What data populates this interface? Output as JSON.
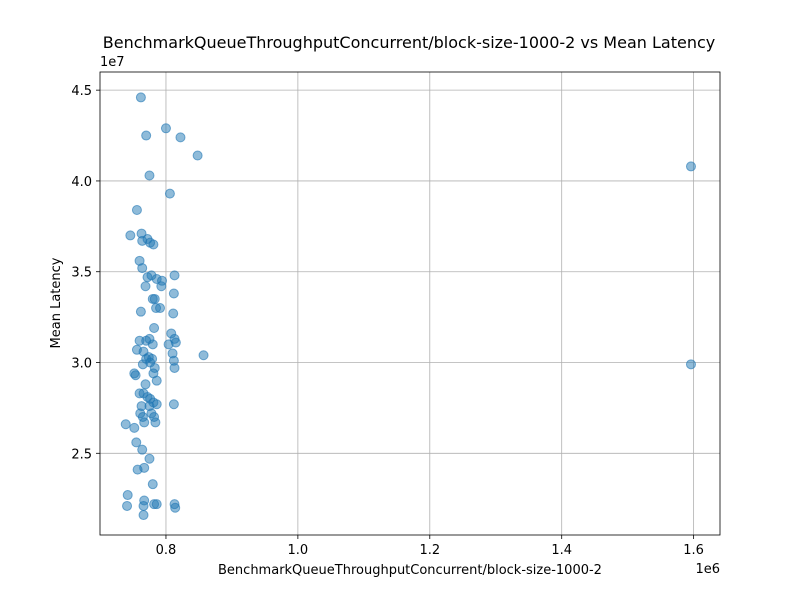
{
  "chart_data": {
    "type": "scatter",
    "title": "BenchmarkQueueThroughputConcurrent/block-size-1000-2 vs Mean Latency",
    "xlabel": "BenchmarkQueueThroughputConcurrent/block-size-1000-2",
    "ylabel": "Mean Latency",
    "x_offset_label": "1e6",
    "y_offset_label": "1e7",
    "xlim": [
      0.7,
      1.64
    ],
    "ylim": [
      2.05,
      4.6
    ],
    "xticks": [
      0.8,
      1.0,
      1.2,
      1.4,
      1.6
    ],
    "xtick_labels": [
      "0.8",
      "1.0",
      "1.2",
      "1.4",
      "1.6"
    ],
    "yticks": [
      2.5,
      3.0,
      3.5,
      4.0,
      4.5
    ],
    "ytick_labels": [
      "2.5",
      "3.0",
      "3.5",
      "4.0",
      "4.5"
    ],
    "grid": true,
    "color": "#1f77b4",
    "points": [
      [
        0.762,
        4.46
      ],
      [
        0.77,
        4.25
      ],
      [
        0.8,
        4.29
      ],
      [
        0.822,
        4.24
      ],
      [
        0.848,
        4.14
      ],
      [
        0.775,
        4.03
      ],
      [
        0.806,
        3.93
      ],
      [
        1.596,
        4.08
      ],
      [
        0.756,
        3.84
      ],
      [
        0.746,
        3.7
      ],
      [
        0.763,
        3.71
      ],
      [
        0.764,
        3.67
      ],
      [
        0.772,
        3.68
      ],
      [
        0.776,
        3.66
      ],
      [
        0.781,
        3.65
      ],
      [
        0.76,
        3.56
      ],
      [
        0.764,
        3.52
      ],
      [
        0.772,
        3.47
      ],
      [
        0.778,
        3.48
      ],
      [
        0.786,
        3.46
      ],
      [
        0.794,
        3.45
      ],
      [
        0.813,
        3.48
      ],
      [
        0.769,
        3.42
      ],
      [
        0.793,
        3.42
      ],
      [
        0.78,
        3.35
      ],
      [
        0.783,
        3.35
      ],
      [
        0.812,
        3.38
      ],
      [
        0.762,
        3.28
      ],
      [
        0.785,
        3.3
      ],
      [
        0.791,
        3.3
      ],
      [
        0.811,
        3.27
      ],
      [
        0.782,
        3.19
      ],
      [
        0.808,
        3.16
      ],
      [
        0.813,
        3.13
      ],
      [
        0.815,
        3.11
      ],
      [
        0.76,
        3.12
      ],
      [
        0.77,
        3.12
      ],
      [
        0.775,
        3.13
      ],
      [
        0.78,
        3.1
      ],
      [
        0.804,
        3.1
      ],
      [
        0.81,
        3.05
      ],
      [
        0.756,
        3.07
      ],
      [
        0.766,
        3.06
      ],
      [
        0.77,
        3.02
      ],
      [
        0.774,
        3.03
      ],
      [
        0.779,
        3.02
      ],
      [
        0.776,
        3.0
      ],
      [
        0.765,
        2.99
      ],
      [
        0.783,
        2.97
      ],
      [
        0.812,
        3.01
      ],
      [
        0.813,
        2.97
      ],
      [
        0.857,
        3.04
      ],
      [
        1.596,
        2.99
      ],
      [
        0.752,
        2.94
      ],
      [
        0.754,
        2.93
      ],
      [
        0.781,
        2.94
      ],
      [
        0.786,
        2.9
      ],
      [
        0.769,
        2.88
      ],
      [
        0.76,
        2.83
      ],
      [
        0.766,
        2.83
      ],
      [
        0.772,
        2.81
      ],
      [
        0.776,
        2.8
      ],
      [
        0.781,
        2.78
      ],
      [
        0.786,
        2.77
      ],
      [
        0.763,
        2.76
      ],
      [
        0.775,
        2.76
      ],
      [
        0.812,
        2.77
      ],
      [
        0.761,
        2.72
      ],
      [
        0.765,
        2.7
      ],
      [
        0.778,
        2.72
      ],
      [
        0.782,
        2.7
      ],
      [
        0.739,
        2.66
      ],
      [
        0.752,
        2.64
      ],
      [
        0.767,
        2.67
      ],
      [
        0.784,
        2.67
      ],
      [
        0.755,
        2.56
      ],
      [
        0.764,
        2.52
      ],
      [
        0.775,
        2.47
      ],
      [
        0.757,
        2.41
      ],
      [
        0.767,
        2.42
      ],
      [
        0.78,
        2.33
      ],
      [
        0.742,
        2.27
      ],
      [
        0.741,
        2.21
      ],
      [
        0.767,
        2.24
      ],
      [
        0.766,
        2.21
      ],
      [
        0.782,
        2.22
      ],
      [
        0.786,
        2.22
      ],
      [
        0.813,
        2.22
      ],
      [
        0.814,
        2.2
      ],
      [
        0.766,
        2.16
      ]
    ]
  }
}
